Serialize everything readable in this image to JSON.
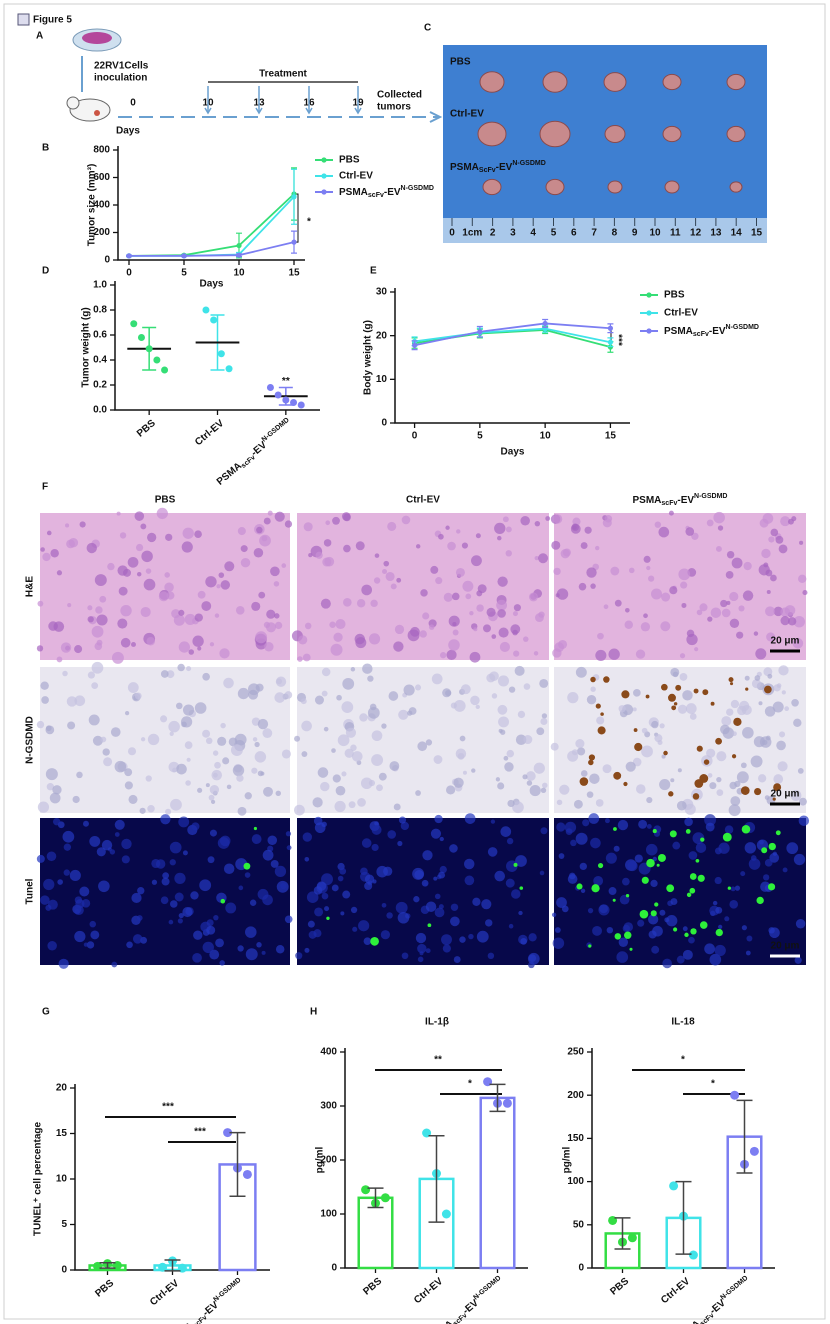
{
  "header": {
    "figure": "Figure 5"
  },
  "panel_labels": [
    "A",
    "B",
    "C",
    "D",
    "E",
    "F",
    "G",
    "H"
  ],
  "timeline": {
    "cells": "22RV1Cells",
    "inoculation": "inoculation",
    "days_label": "Days",
    "days": [
      0,
      10,
      13,
      16,
      19
    ],
    "treatment": "Treatment",
    "collected": "Collected",
    "tumors": "tumors"
  },
  "photo": {
    "rows": [
      "PBS",
      "Ctrl-EV",
      [
        "PSMA",
        {
          "sub": "ScFv"
        },
        "-EV",
        {
          "sup": "N-GSDMD"
        }
      ]
    ],
    "ruler": [
      0,
      "1cm",
      2,
      3,
      4,
      5,
      6,
      7,
      8,
      9,
      10,
      11,
      12,
      13,
      14,
      15
    ]
  },
  "histology": {
    "columns": [
      "PBS",
      "Ctrl-EV",
      [
        "PSMA",
        {
          "sub": "scFv"
        },
        "-EV",
        {
          "sup": "N-GSDMD"
        }
      ]
    ],
    "rows": [
      "H&E",
      "N-GSDMD",
      "Tunel"
    ],
    "scale_bar": "20 μm"
  },
  "chart_data": [
    {
      "type": "line",
      "x": [
        0,
        5,
        10,
        15
      ],
      "xlim": [
        -1,
        16
      ],
      "xticks": [
        0,
        5,
        10,
        15
      ],
      "ylim": [
        0,
        800
      ],
      "yticks": [
        0,
        200,
        400,
        600,
        800
      ],
      "xlabel": "Days",
      "ylabel": "Tumor size (mm³)",
      "legend": "right",
      "annotations": [
        "*"
      ],
      "series": [
        {
          "name": "PBS",
          "color": "#35de76",
          "values": [
            30,
            35,
            105,
            480
          ],
          "errors": [
            5,
            5,
            90,
            190
          ]
        },
        {
          "name": "Ctrl-EV",
          "color": "#3fe3e8",
          "values": [
            30,
            30,
            40,
            460
          ],
          "errors": [
            5,
            5,
            15,
            200
          ]
        },
        {
          "name": [
            "PSMA",
            {
              "sub": "scFv"
            },
            "-EV",
            {
              "sup": "N-GSDMD"
            }
          ],
          "color": "#7c7ef2",
          "values": [
            30,
            30,
            35,
            130
          ],
          "errors": [
            5,
            5,
            10,
            80
          ]
        }
      ]
    },
    {
      "type": "dot",
      "categories": [
        "PBS",
        "Ctrl-EV",
        [
          "PSMA",
          {
            "sub": "scFv"
          },
          "-EV",
          {
            "sup": "N-GSDMD"
          }
        ]
      ],
      "ylim": [
        0,
        1.0
      ],
      "yticks": [
        {
          "value": 0,
          "label": "0.0"
        },
        0.2,
        0.4,
        0.6,
        0.8,
        {
          "value": 1.0,
          "label": "1.0"
        }
      ],
      "ylabel": "Tumor weight (g)",
      "annotations": [
        "**"
      ],
      "colors": [
        "#35de76",
        "#3fe3e8",
        "#7c7ef2"
      ],
      "values": [
        0.49,
        0.54,
        0.11
      ],
      "errors": [
        0.17,
        0.22,
        0.07
      ],
      "points": [
        [
          0.69,
          0.58,
          0.49,
          0.4,
          0.32
        ],
        [
          0.8,
          0.72,
          0.45,
          0.33
        ],
        [
          0.18,
          0.12,
          0.08,
          0.06,
          0.04
        ]
      ]
    },
    {
      "type": "line",
      "x": [
        0,
        5,
        10,
        15
      ],
      "xlim": [
        -1.5,
        16.5
      ],
      "xticks": [
        0,
        5,
        10,
        15
      ],
      "ylim": [
        0,
        30
      ],
      "yticks": [
        0,
        10,
        20,
        30
      ],
      "xlabel": "Days",
      "ylabel": "Body weight (g)",
      "legend": "right",
      "annotations": [
        "***"
      ],
      "series": [
        {
          "name": "PBS",
          "color": "#35de76",
          "values": [
            18.3,
            20.5,
            21.3,
            17.4
          ],
          "errors": [
            1.2,
            1,
            0.8,
            1.2
          ]
        },
        {
          "name": "Ctrl-EV",
          "color": "#3fe3e8",
          "values": [
            18.7,
            20.7,
            21.6,
            18.5
          ],
          "errors": [
            1,
            1,
            0.8,
            1
          ]
        },
        {
          "name": [
            "PSMA",
            {
              "sub": "scFv"
            },
            "-EV",
            {
              "sup": "N-GSDMD"
            }
          ],
          "color": "#7c7ef2",
          "values": [
            17.8,
            20.9,
            22.8,
            21.7
          ],
          "errors": [
            1,
            1.2,
            0.9,
            1
          ]
        }
      ]
    },
    {
      "type": "bar",
      "categories": [
        "PBS",
        "Ctrl-EV",
        [
          "PSMA",
          {
            "sub": "scFv"
          },
          "-EV",
          {
            "sup": "N-GSDMD"
          }
        ]
      ],
      "ylim": [
        0,
        20
      ],
      "yticks": [
        0,
        5,
        10,
        15,
        20
      ],
      "ylabel": "TUNEL⁺ cell percentage",
      "annotations": [
        "***",
        "***"
      ],
      "colors": [
        "#33dd44",
        "#3fe3e8",
        "#7c7ef2"
      ],
      "values": [
        0.5,
        0.5,
        11.6
      ],
      "errors": [
        0.3,
        0.6,
        3.5
      ],
      "points": [
        [
          0.4,
          0.7,
          0.5
        ],
        [
          0.3,
          1.0,
          0.2
        ],
        [
          15.1,
          11.2,
          10.5
        ]
      ]
    },
    {
      "type": "bar",
      "title": "IL-1β",
      "categories": [
        "PBS",
        "Ctrl-EV",
        [
          "PSMA",
          {
            "sub": "scFv"
          },
          "-EV",
          {
            "sup": "N-GSDMD"
          }
        ]
      ],
      "ylim": [
        0,
        400
      ],
      "yticks": [
        0,
        100,
        200,
        300,
        400
      ],
      "ylabel": "pg/ml",
      "annotations": [
        "**",
        "*"
      ],
      "colors": [
        "#33dd44",
        "#3fe3e8",
        "#7c7ef2"
      ],
      "values": [
        130,
        165,
        315
      ],
      "errors": [
        18,
        80,
        25
      ],
      "points": [
        [
          145,
          120,
          130
        ],
        [
          250,
          175,
          100
        ],
        [
          345,
          305,
          305
        ]
      ]
    },
    {
      "type": "bar",
      "title": "IL-18",
      "categories": [
        "PBS",
        "Ctrl-EV",
        [
          "PSMA",
          {
            "sub": "scFv"
          },
          "-EV",
          {
            "sup": "N-GSDMD"
          }
        ]
      ],
      "ylim": [
        0,
        250
      ],
      "yticks": [
        0,
        50,
        100,
        150,
        200,
        250
      ],
      "ylabel": "pg/ml",
      "annotations": [
        "*",
        "*"
      ],
      "colors": [
        "#33dd44",
        "#3fe3e8",
        "#7c7ef2"
      ],
      "values": [
        40,
        58,
        152
      ],
      "errors": [
        18,
        42,
        42
      ],
      "points": [
        [
          55,
          30,
          35
        ],
        [
          95,
          60,
          15
        ],
        [
          200,
          120,
          135
        ]
      ]
    }
  ]
}
